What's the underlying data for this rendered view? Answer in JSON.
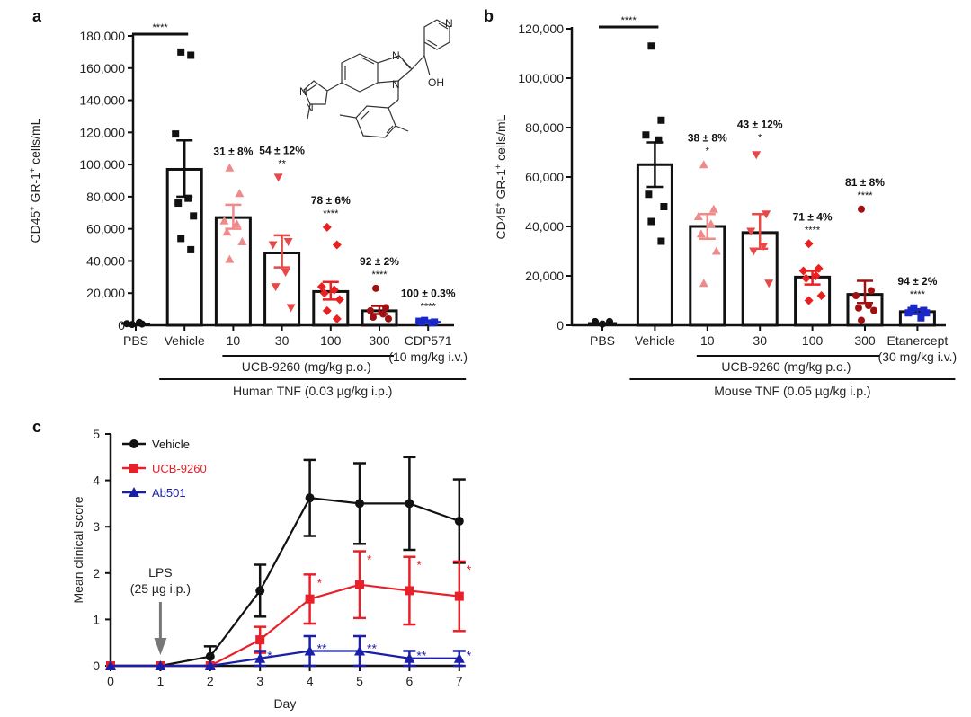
{
  "figure": {
    "panel_letters": [
      "a",
      "b",
      "c"
    ]
  },
  "chart_data": [
    {
      "panel": "a",
      "type": "bar",
      "title": "",
      "ylabel": "CD45+ GR-1+ cells/mL",
      "ylabel_parts": {
        "pre": "CD45",
        "sup1": "+",
        "mid": " GR-1",
        "sup2": "+",
        "post": " cells/mL"
      },
      "xlabel": "",
      "ylim": [
        0,
        180000
      ],
      "yticks": [
        0,
        20000,
        40000,
        60000,
        80000,
        100000,
        120000,
        140000,
        160000,
        180000
      ],
      "ytick_labels": [
        "0",
        "20,000",
        "40,000",
        "60,000",
        "80,000",
        "100,000",
        "120,000",
        "140,000",
        "160,000",
        "180,000"
      ],
      "categories": [
        "PBS",
        "Vehicle",
        "10",
        "30",
        "100",
        "300",
        "CDP571"
      ],
      "means": [
        1000,
        97000,
        67000,
        45000,
        21000,
        9000,
        2000
      ],
      "sem_upper": [
        1000,
        115000,
        75000,
        56000,
        27000,
        12000,
        2500
      ],
      "sem_lower": [
        1000,
        80000,
        60000,
        36000,
        16000,
        7000,
        1500
      ],
      "show_bar": [
        false,
        true,
        true,
        true,
        true,
        true,
        false
      ],
      "marker_colors": [
        "#111111",
        "#111111",
        "#f08a8a",
        "#e84848",
        "#e82020",
        "#a01010",
        "#1a28c8"
      ],
      "marker_shapes": [
        "circle",
        "square",
        "triangle-up",
        "triangle-down",
        "diamond",
        "circle",
        "square"
      ],
      "points": [
        [
          500,
          800,
          1000,
          1800
        ],
        [
          170000,
          168000,
          119000,
          79000,
          76000,
          68000,
          54000,
          47000
        ],
        [
          98000,
          82000,
          65000,
          63000,
          58000,
          52000,
          41000
        ],
        [
          92000,
          52000,
          50000,
          33000,
          24000,
          11000
        ],
        [
          61000,
          50000,
          24000,
          22000,
          20000,
          16000,
          9000,
          4000
        ],
        [
          23000,
          11000,
          9000,
          7000,
          5000,
          4000
        ],
        [
          3000,
          2000,
          2500,
          1500,
          2000
        ]
      ],
      "annotations": [
        {
          "category": "10",
          "pct": "31 ± 8%",
          "stars": ""
        },
        {
          "category": "30",
          "pct": "54 ± 12%",
          "stars": "**"
        },
        {
          "category": "100",
          "pct": "78 ± 6%",
          "stars": "****"
        },
        {
          "category": "300",
          "pct": "92 ± 2%",
          "stars": "****"
        },
        {
          "category": "CDP571",
          "pct": "100 ± 0.3%",
          "stars": "****"
        }
      ],
      "comparison_bar": {
        "from": "PBS",
        "to": "Vehicle",
        "stars": "****"
      },
      "group_labels": {
        "drug": "UCB-9260 (mg/kg p.o.)",
        "control_sub": "(10 mg/kg i.v.)",
        "challenge": "Human TNF (0.03 µg/kg i.p.)"
      },
      "structure_labels": {
        "n_pyridine": "N",
        "n_imid_top": "N",
        "n_imid_bottom": "N",
        "oh": "OH",
        "n_pyrazole1": "N",
        "n_pyrazole2": "N"
      }
    },
    {
      "panel": "b",
      "type": "bar",
      "title": "",
      "ylabel": "CD45+ GR-1+ cells/mL",
      "ylabel_parts": {
        "pre": "CD45",
        "sup1": "+",
        "mid": " GR-1",
        "sup2": "+",
        "post": " cells/mL"
      },
      "xlabel": "",
      "ylim": [
        0,
        120000
      ],
      "yticks": [
        0,
        20000,
        40000,
        60000,
        80000,
        100000,
        120000
      ],
      "ytick_labels": [
        "0",
        "20,000",
        "40,000",
        "60,000",
        "80,000",
        "100,000",
        "120,000"
      ],
      "categories": [
        "PBS",
        "Vehicle",
        "10",
        "30",
        "100",
        "300",
        "Etanercept"
      ],
      "means": [
        800,
        65000,
        40000,
        37500,
        19500,
        12500,
        5500
      ],
      "sem_upper": [
        800,
        74000,
        45000,
        45000,
        22000,
        18000,
        6500
      ],
      "sem_lower": [
        800,
        56000,
        35000,
        31000,
        16500,
        9000,
        4500
      ],
      "show_bar": [
        false,
        true,
        true,
        true,
        true,
        true,
        true
      ],
      "marker_colors": [
        "#111111",
        "#111111",
        "#f08a8a",
        "#e84848",
        "#e82020",
        "#a01010",
        "#1a28c8"
      ],
      "marker_shapes": [
        "circle",
        "square",
        "triangle-up",
        "triangle-down",
        "diamond",
        "circle",
        "square"
      ],
      "points": [
        [
          1500,
          500,
          1500
        ],
        [
          113000,
          83000,
          77000,
          75000,
          53000,
          48000,
          42000,
          34000
        ],
        [
          65000,
          47000,
          44000,
          41000,
          37000,
          30000,
          17000
        ],
        [
          69000,
          45000,
          38000,
          32000,
          30000,
          17000
        ],
        [
          33000,
          23000,
          22000,
          20000,
          19000,
          12000,
          10000
        ],
        [
          47000,
          14000,
          12000,
          8000,
          7000,
          6000,
          2000
        ],
        [
          7000,
          6000,
          5000,
          3000,
          6000,
          5000
        ]
      ],
      "annotations": [
        {
          "category": "10",
          "pct": "38 ± 8%",
          "stars": "*"
        },
        {
          "category": "30",
          "pct": "43 ± 12%",
          "stars": "*"
        },
        {
          "category": "100",
          "pct": "71 ± 4%",
          "stars": "****"
        },
        {
          "category": "300",
          "pct": "81 ± 8%",
          "stars": "****"
        },
        {
          "category": "Etanercept",
          "pct": "94 ± 2%",
          "stars": "****"
        }
      ],
      "comparison_bar": {
        "from": "PBS",
        "to": "Vehicle",
        "stars": "****"
      },
      "group_labels": {
        "drug": "UCB-9260 (mg/kg p.o.)",
        "control_sub": "(30 mg/kg i.v.)",
        "challenge": "Mouse TNF (0.05 µg/kg i.p.)"
      }
    },
    {
      "panel": "c",
      "type": "line",
      "title": "",
      "xlabel": "Day",
      "ylabel": "Mean clinical score",
      "xlim": [
        0,
        7
      ],
      "ylim": [
        0,
        5
      ],
      "xticks": [
        0,
        1,
        2,
        3,
        4,
        5,
        6,
        7
      ],
      "yticks": [
        0,
        1,
        2,
        3,
        4,
        5
      ],
      "legend_position": "top-left",
      "x": [
        0,
        1,
        2,
        3,
        4,
        5,
        6,
        7
      ],
      "series": [
        {
          "name": "Vehicle",
          "color": "#111111",
          "marker": "circle",
          "values": [
            0,
            0,
            0.2,
            1.62,
            3.62,
            3.5,
            3.5,
            3.12
          ],
          "err": [
            0,
            0,
            0.22,
            0.56,
            0.82,
            0.87,
            1.0,
            0.9
          ],
          "stars": [
            "",
            "",
            "",
            "",
            "",
            "",
            "",
            ""
          ]
        },
        {
          "name": "UCB-9260",
          "color": "#e8202a",
          "marker": "square",
          "values": [
            0,
            0,
            0,
            0.56,
            1.44,
            1.75,
            1.62,
            1.5
          ],
          "err": [
            0,
            0,
            0,
            0.28,
            0.53,
            0.72,
            0.73,
            0.75
          ],
          "stars": [
            "",
            "",
            "",
            "",
            "*",
            "*",
            "*",
            "*"
          ]
        },
        {
          "name": "Ab501",
          "color": "#1a1ea8",
          "marker": "triangle",
          "values": [
            0,
            0,
            0,
            0.16,
            0.32,
            0.32,
            0.16,
            0.16
          ],
          "err": [
            0,
            0,
            0,
            0.16,
            0.32,
            0.32,
            0.16,
            0.16
          ],
          "stars": [
            "",
            "",
            "",
            "*",
            "**",
            "**",
            "**",
            "*"
          ]
        }
      ],
      "annotations": [
        {
          "x": 1,
          "text_line1": "LPS",
          "text_line2": "(25 µg i.p.)",
          "type": "arrow",
          "color": "#777777"
        }
      ]
    }
  ]
}
